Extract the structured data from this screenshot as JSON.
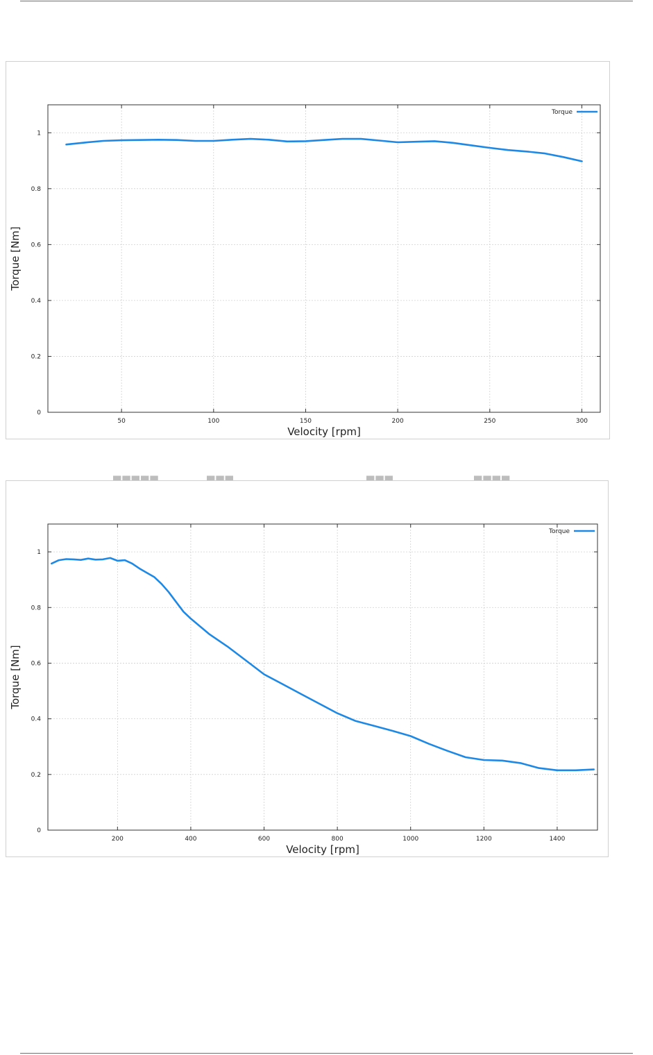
{
  "chart_data": [
    {
      "type": "line",
      "title": "",
      "xlabel": "Velocity [rpm]",
      "ylabel": "Torque [Nm]",
      "xlim": [
        10,
        310
      ],
      "ylim": [
        0,
        1.1
      ],
      "xticks": [
        50,
        100,
        150,
        200,
        250,
        300
      ],
      "yticks": [
        0,
        0.2,
        0.4,
        0.6,
        0.8,
        1
      ],
      "ytick_labels": [
        "0",
        "0.2",
        "0.4",
        "0.6",
        "0.8",
        "1"
      ],
      "grid": true,
      "legend": "top-right",
      "series": [
        {
          "name": "Torque",
          "color": "#1e88e5",
          "x": [
            20,
            30,
            40,
            50,
            60,
            70,
            80,
            90,
            100,
            110,
            120,
            130,
            140,
            150,
            160,
            170,
            180,
            190,
            200,
            210,
            220,
            230,
            240,
            250,
            260,
            270,
            280,
            290,
            300
          ],
          "y": [
            0.958,
            0.965,
            0.971,
            0.973,
            0.974,
            0.975,
            0.974,
            0.971,
            0.971,
            0.975,
            0.978,
            0.975,
            0.969,
            0.97,
            0.974,
            0.978,
            0.978,
            0.972,
            0.966,
            0.968,
            0.97,
            0.964,
            0.955,
            0.946,
            0.938,
            0.933,
            0.926,
            0.913,
            0.898
          ]
        }
      ]
    },
    {
      "type": "line",
      "title": "",
      "xlabel": "Velocity [rpm]",
      "ylabel": "Torque [Nm]",
      "xlim": [
        10,
        1510
      ],
      "ylim": [
        0,
        1.1
      ],
      "xticks": [
        200,
        400,
        600,
        800,
        1000,
        1200,
        1400
      ],
      "yticks": [
        0,
        0.2,
        0.4,
        0.6,
        0.8,
        1
      ],
      "ytick_labels": [
        "0",
        "0.2",
        "0.4",
        "0.6",
        "0.8",
        "1"
      ],
      "grid": true,
      "legend": "top-right",
      "series": [
        {
          "name": "Torque",
          "color": "#1e88e5",
          "x": [
            20,
            40,
            60,
            80,
            100,
            120,
            140,
            160,
            180,
            200,
            220,
            240,
            260,
            280,
            300,
            320,
            340,
            360,
            380,
            400,
            450,
            500,
            550,
            600,
            650,
            700,
            750,
            800,
            850,
            900,
            950,
            1000,
            1050,
            1100,
            1150,
            1200,
            1250,
            1300,
            1350,
            1400,
            1450,
            1500
          ],
          "y": [
            0.958,
            0.97,
            0.974,
            0.973,
            0.971,
            0.976,
            0.972,
            0.973,
            0.978,
            0.968,
            0.97,
            0.958,
            0.94,
            0.925,
            0.91,
            0.885,
            0.855,
            0.82,
            0.785,
            0.76,
            0.705,
            0.66,
            0.61,
            0.56,
            0.525,
            0.49,
            0.455,
            0.42,
            0.392,
            0.375,
            0.357,
            0.338,
            0.31,
            0.285,
            0.262,
            0.252,
            0.25,
            0.241,
            0.223,
            0.215,
            0.215,
            0.218
          ]
        }
      ]
    }
  ]
}
